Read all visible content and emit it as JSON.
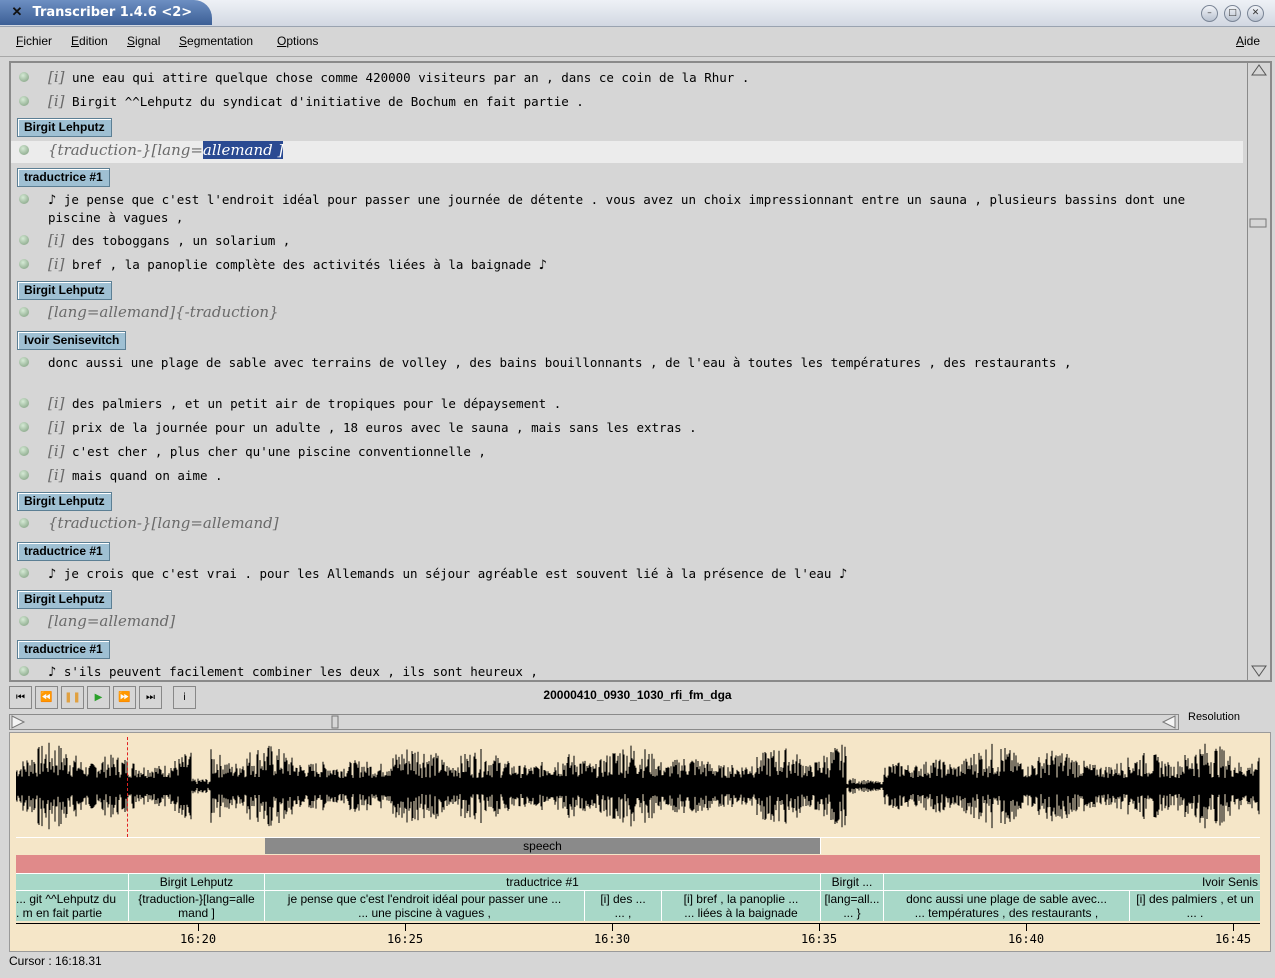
{
  "window": {
    "title": "Transcriber 1.4.6 <2>"
  },
  "menubar": {
    "fichier": {
      "label": "ichier",
      "u": "F"
    },
    "edition": {
      "label": "dition",
      "u": "E"
    },
    "signal": {
      "label": "ignal",
      "u": "S"
    },
    "segmentation": {
      "label": "egmentation",
      "u": "S"
    },
    "options": {
      "label": "ptions",
      "u": "O"
    },
    "aide": {
      "label": "ide",
      "u": "A"
    }
  },
  "transcript": {
    "lines": [
      {
        "tag": "[i]",
        "text": "une eau qui attire quelque chose comme 420000 visiteurs par an , dans ce coin de la Rhur ."
      },
      {
        "tag": "[i]",
        "text": "Birgit ^^Lehputz du syndicat d'initiative de Bochum en fait partie ."
      },
      {
        "speaker": "Birgit Lehputz"
      },
      {
        "tag_prefix": "{traduction-}[lang=",
        "tag_sel": "allemand ]"
      },
      {
        "speaker": "traductrice #1"
      },
      {
        "note": "♪",
        "text": "je pense que c'est l'endroit idéal pour passer une journée de détente . vous avez un choix impressionnant entre un sauna , plusieurs bassins dont une piscine à vagues ,"
      },
      {
        "tag": "[i]",
        "text": "des toboggans , un solarium ,"
      },
      {
        "tag": "[i]",
        "text": "bref , la panoplie complète des activités liées à la baignade",
        "note_end": "♪"
      },
      {
        "speaker": "Birgit Lehputz"
      },
      {
        "tag": "[lang=allemand]{-traduction}"
      },
      {
        "speaker": "Ivoir Senisevitch"
      },
      {
        "text": "donc aussi une plage de sable avec terrains de volley , des bains bouillonnants , de l'eau à toutes les températures , des restaurants ,"
      },
      {
        "tag": "[i]",
        "text": "des palmiers , et un petit air de tropiques pour le dépaysement ."
      },
      {
        "tag": "[i]",
        "text": "prix de la journée pour un adulte , 18 euros avec le sauna , mais sans les extras ."
      },
      {
        "tag": "[i]",
        "text": "c'est cher , plus cher qu'une piscine conventionnelle ,"
      },
      {
        "tag": "[i]",
        "text": "mais quand on aime ."
      },
      {
        "speaker": "Birgit Lehputz"
      },
      {
        "tag": "{traduction-}[lang=allemand]"
      },
      {
        "speaker": "traductrice #1"
      },
      {
        "note": "♪",
        "text": "je crois que c'est vrai . pour les Allemands un séjour agréable est souvent lié à la présence de l'eau",
        "note_end": "♪"
      },
      {
        "speaker": "Birgit Lehputz"
      },
      {
        "tag": "[lang=allemand]"
      },
      {
        "speaker": "traductrice #1"
      },
      {
        "note": "♪",
        "text": "s'ils peuvent facilement combiner les deux , ils sont heureux ,"
      }
    ]
  },
  "player": {
    "filename": "20000410_0930_1030_rfi_fm_dga",
    "resolution_label": "Resolution"
  },
  "segments": {
    "speech_label": "speech",
    "speakers": [
      "Birgit Lehputz",
      "traductrice #1",
      "Birgit ...",
      "Ivoir Senis"
    ],
    "texts": [
      "git ^^Lehputz du ...\nm en fait partie .",
      "{traduction-}[lang=alle\nmand ]",
      "je pense que c'est l'endroit idéal pour passer une ...\n... une piscine à vagues ,",
      "[i] des ...\n... ,",
      "[i] bref , la panoplie ...\n... liées à la baignade",
      "[lang=all...\n... }",
      "donc aussi une plage de sable avec...\n... températures , des restaurants ,",
      "[i] des palmiers , et un\n... ."
    ]
  },
  "timeline": {
    "ticks": [
      "16:20",
      "16:25",
      "16:30",
      "16:35",
      "16:40",
      "16:45"
    ]
  },
  "status": {
    "cursor": "Cursor : 16:18.31"
  },
  "colors": {
    "speaker_tag": "#9fc0d3",
    "segment": "#a8d8c8",
    "speech_bar": "#8a8a8a",
    "topic_bar": "#e08a8a",
    "cursor_line": "#e02020",
    "selection": "#2a4a92"
  }
}
